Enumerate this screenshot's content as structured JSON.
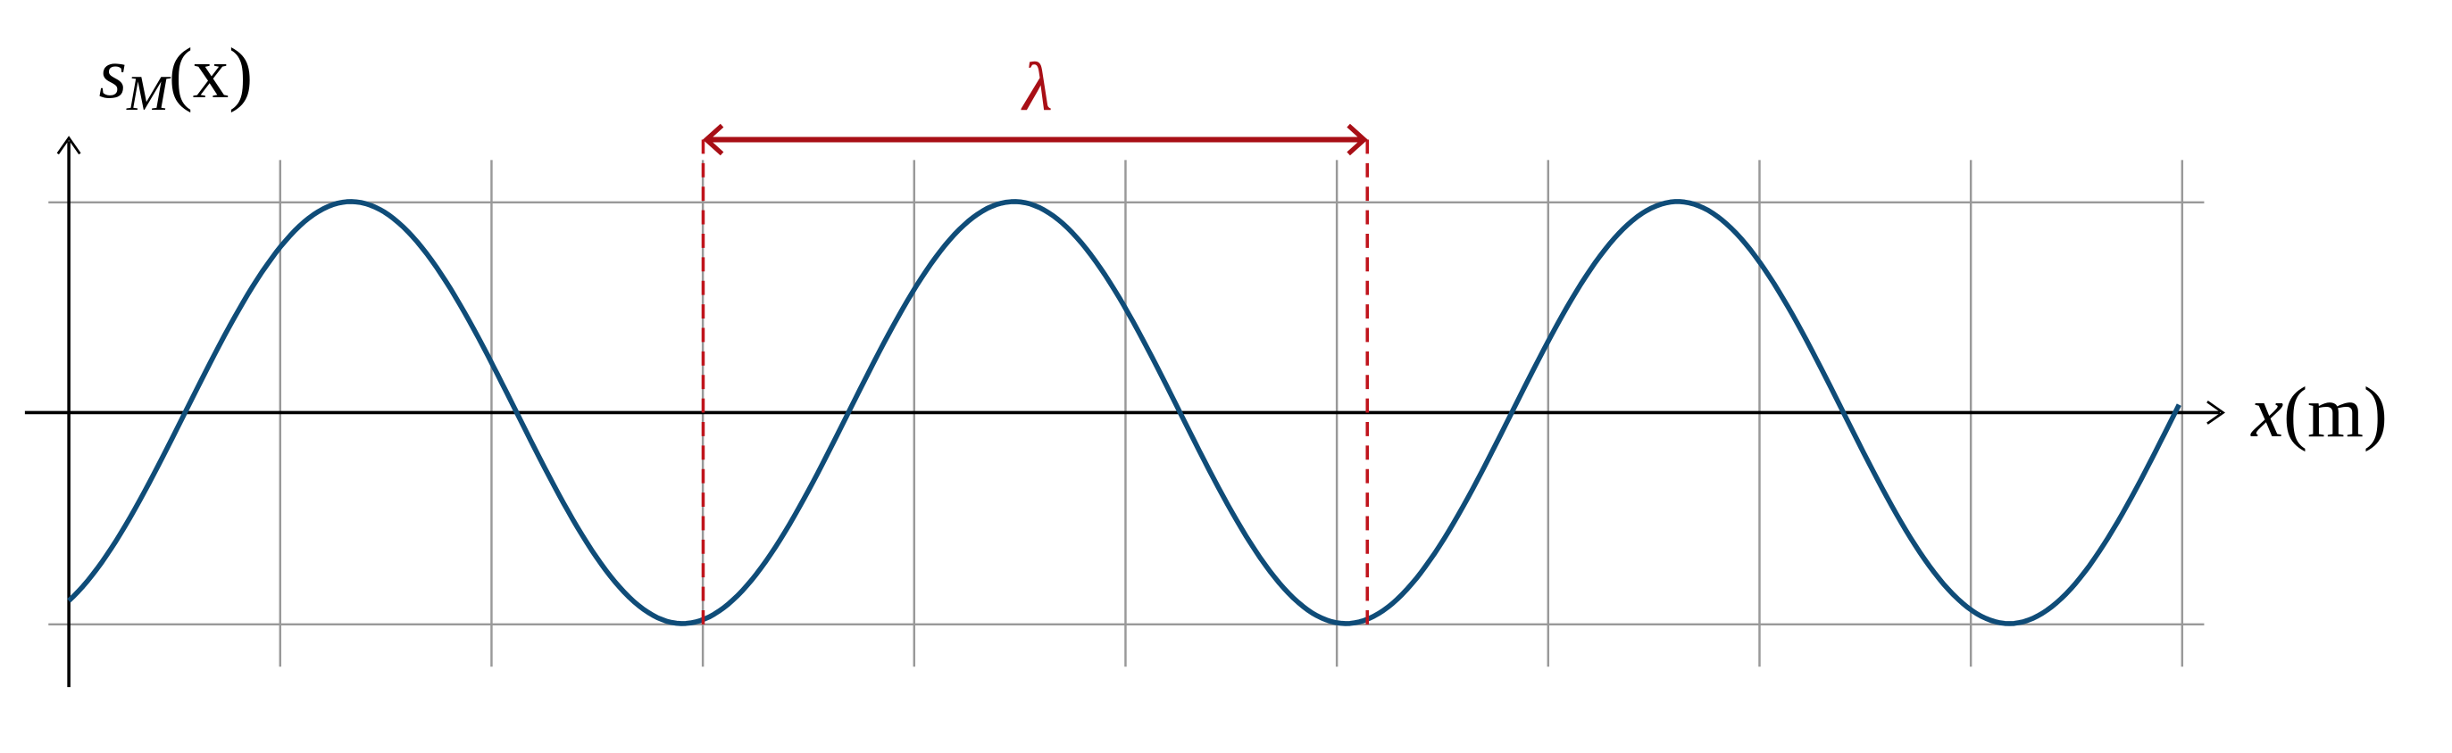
{
  "axes": {
    "y_label": {
      "symbol": "s",
      "subscript": "M",
      "argument": "(x)"
    },
    "x_label": {
      "symbol": "x",
      "unit": "(m)"
    }
  },
  "wavelength": {
    "label": "λ"
  }
}
